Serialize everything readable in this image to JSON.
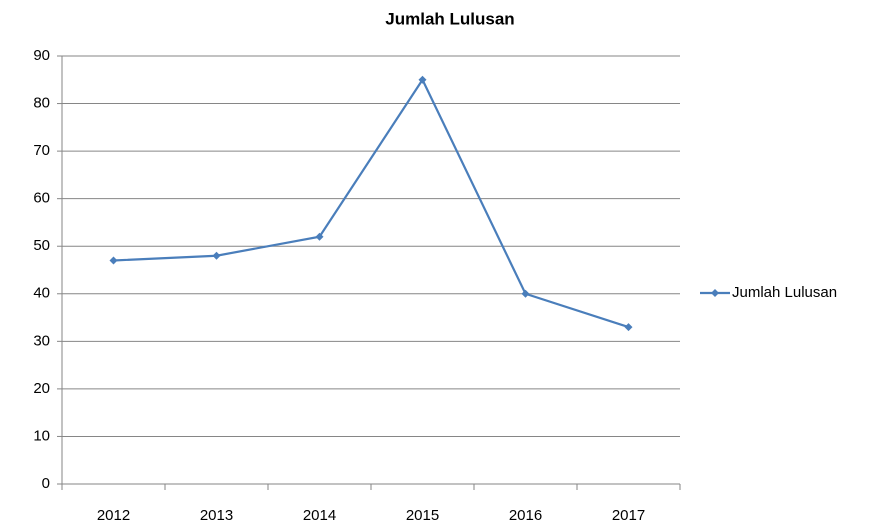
{
  "chart_data": {
    "type": "line",
    "title": "Jumlah Lulusan",
    "categories": [
      "2012",
      "2013",
      "2014",
      "2015",
      "2016",
      "2017"
    ],
    "series": [
      {
        "name": "Jumlah Lulusan",
        "color": "#4a7ebb",
        "values": [
          47,
          48,
          52,
          85,
          40,
          33
        ]
      }
    ],
    "ylim": [
      0,
      90
    ],
    "yticks": [
      0,
      10,
      20,
      30,
      40,
      50,
      60,
      70,
      80,
      90
    ],
    "grid": true,
    "legend": "right"
  }
}
